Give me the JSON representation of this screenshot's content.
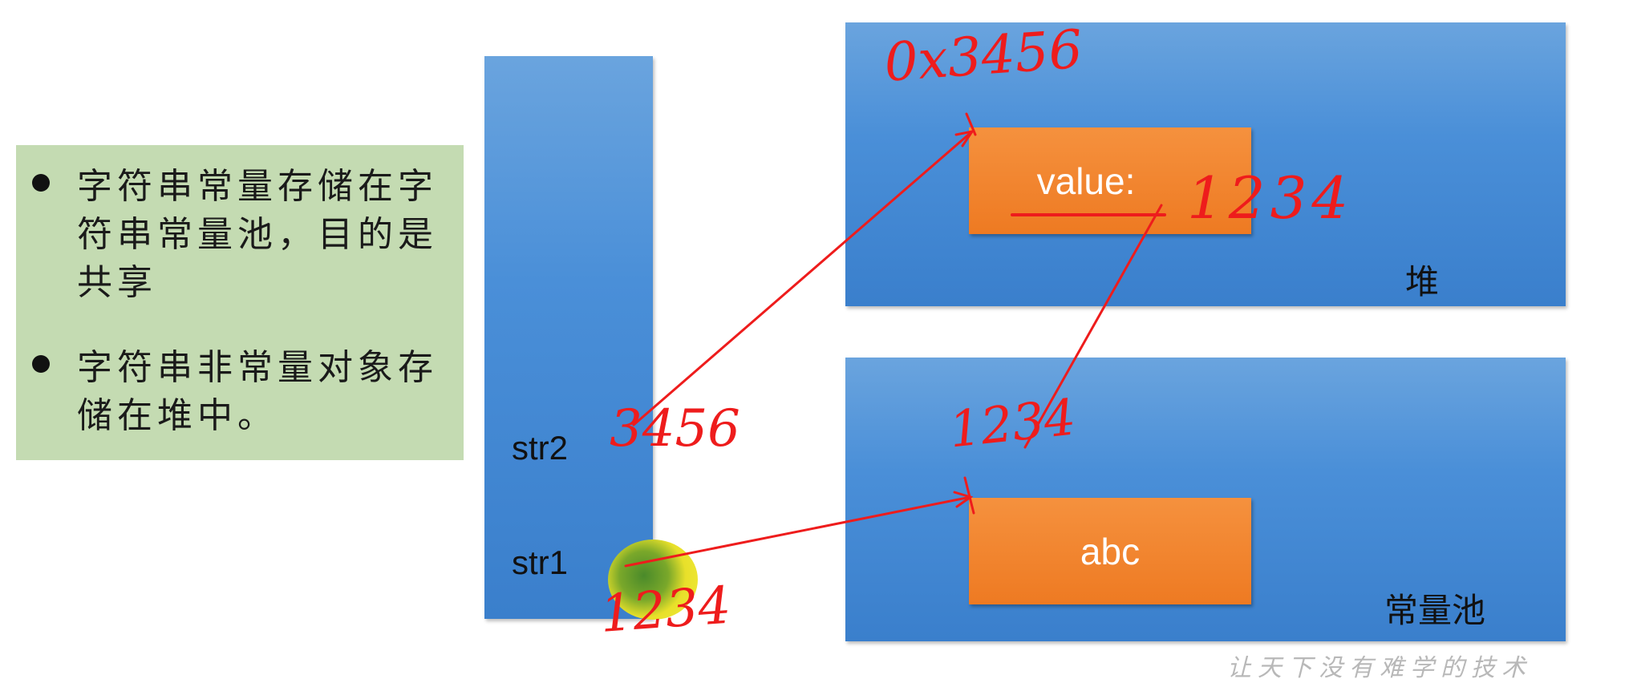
{
  "notes": [
    {
      "text": "字符串常量存储在字符串常量池，目的是共享"
    },
    {
      "text": "字符串非常量对象存储在堆中。"
    }
  ],
  "stack": {
    "vars": [
      {
        "name": "str2",
        "ref": "3456"
      },
      {
        "name": "str1",
        "ref": "1234"
      }
    ]
  },
  "heap": {
    "label": "堆",
    "address": "0x3456",
    "object_text": "value:",
    "object_ref": "1234"
  },
  "pool": {
    "label": "常量池",
    "address": "1234",
    "object_text": "abc"
  },
  "watermark": "让天下没有难学的技术",
  "colors": {
    "annotation": "#ee1c1c",
    "memory_area": "#4a8fd8",
    "object_box": "#ee7a22",
    "note_panel": "#c4dbb2"
  }
}
